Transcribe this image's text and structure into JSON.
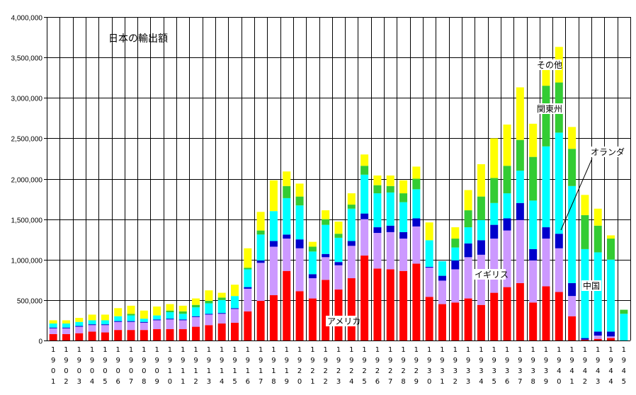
{
  "chart_data": {
    "type": "bar",
    "stacked": true,
    "title": "日本の輸出額",
    "xlabel": "",
    "ylabel": "",
    "ylim": [
      0,
      4000000
    ],
    "y_ticks": [
      "0",
      "500,000",
      "1,000,000",
      "1,500,000",
      "2,000,000",
      "2,500,000",
      "3,000,000",
      "3,500,000",
      "4,000,000"
    ],
    "grid": true,
    "categories": [
      "1901",
      "1902",
      "1903",
      "1904",
      "1905",
      "1906",
      "1907",
      "1908",
      "1909",
      "1910",
      "1911",
      "1912",
      "1913",
      "1914",
      "1915",
      "1916",
      "1917",
      "1918",
      "1919",
      "1920",
      "1921",
      "1922",
      "1923",
      "1924",
      "1925",
      "1926",
      "1927",
      "1928",
      "1929",
      "1930",
      "1931",
      "1932",
      "1933",
      "1934",
      "1935",
      "1936",
      "1937",
      "1938",
      "1939",
      "1940",
      "1941",
      "1942",
      "1943",
      "1944",
      "1945"
    ],
    "colors": [
      "#ff0000",
      "#cc99ff",
      "#0000cc",
      "#00ffff",
      "#33cc33",
      "#ffff00"
    ],
    "series": [
      {
        "name": "アメリカ",
        "values": [
          80000,
          80000,
          90000,
          110000,
          100000,
          130000,
          130000,
          130000,
          140000,
          140000,
          140000,
          170000,
          190000,
          210000,
          220000,
          360000,
          490000,
          560000,
          860000,
          610000,
          520000,
          750000,
          630000,
          770000,
          1050000,
          890000,
          880000,
          860000,
          950000,
          540000,
          450000,
          470000,
          520000,
          440000,
          590000,
          660000,
          710000,
          470000,
          670000,
          600000,
          300000,
          10000,
          20000,
          30000,
          0
        ]
      },
      {
        "name": "",
        "values": [
          70000,
          70000,
          80000,
          80000,
          90000,
          100000,
          100000,
          90000,
          110000,
          120000,
          110000,
          120000,
          130000,
          120000,
          170000,
          280000,
          470000,
          600000,
          400000,
          530000,
          250000,
          280000,
          300000,
          400000,
          450000,
          440000,
          460000,
          400000,
          460000,
          360000,
          290000,
          410000,
          510000,
          620000,
          670000,
          700000,
          780000,
          520000,
          590000,
          540000,
          250000,
          0,
          40000,
          20000,
          0
        ]
      },
      {
        "name": "",
        "values": [
          10000,
          10000,
          10000,
          10000,
          10000,
          10000,
          10000,
          10000,
          10000,
          10000,
          10000,
          10000,
          10000,
          10000,
          10000,
          20000,
          30000,
          70000,
          50000,
          110000,
          50000,
          40000,
          40000,
          60000,
          70000,
          70000,
          80000,
          80000,
          100000,
          10000,
          60000,
          110000,
          170000,
          180000,
          170000,
          150000,
          210000,
          140000,
          140000,
          180000,
          160000,
          20000,
          50000,
          60000,
          0
        ]
      },
      {
        "name": "",
        "values": [
          50000,
          50000,
          50000,
          50000,
          50000,
          60000,
          70000,
          40000,
          50000,
          80000,
          70000,
          110000,
          130000,
          160000,
          150000,
          220000,
          320000,
          370000,
          450000,
          420000,
          280000,
          360000,
          300000,
          400000,
          480000,
          420000,
          410000,
          370000,
          360000,
          330000,
          180000,
          160000,
          200000,
          250000,
          270000,
          310000,
          400000,
          600000,
          1000000,
          1250000,
          1200000,
          1100000,
          980000,
          890000,
          330000
        ]
      },
      {
        "name": "",
        "values": [
          0,
          0,
          0,
          0,
          0,
          0,
          20000,
          0,
          0,
          20000,
          30000,
          30000,
          30000,
          30000,
          0,
          20000,
          50000,
          0,
          150000,
          110000,
          60000,
          70000,
          50000,
          50000,
          110000,
          100000,
          80000,
          110000,
          130000,
          0,
          0,
          110000,
          210000,
          290000,
          310000,
          340000,
          380000,
          540000,
          750000,
          620000,
          460000,
          420000,
          330000,
          260000,
          50000
        ]
      },
      {
        "name": "",
        "values": [
          40000,
          40000,
          50000,
          70000,
          70000,
          100000,
          100000,
          100000,
          110000,
          80000,
          70000,
          80000,
          130000,
          60000,
          140000,
          240000,
          230000,
          380000,
          180000,
          160000,
          60000,
          110000,
          150000,
          140000,
          140000,
          120000,
          130000,
          160000,
          150000,
          220000,
          0,
          140000,
          250000,
          400000,
          490000,
          510000,
          650000,
          410000,
          310000,
          440000,
          270000,
          250000,
          210000,
          40000,
          0
        ]
      }
    ],
    "annotations": [
      "アメリカ",
      "イギリス",
      "オランダ",
      "その他",
      "関東州",
      "中国"
    ]
  }
}
